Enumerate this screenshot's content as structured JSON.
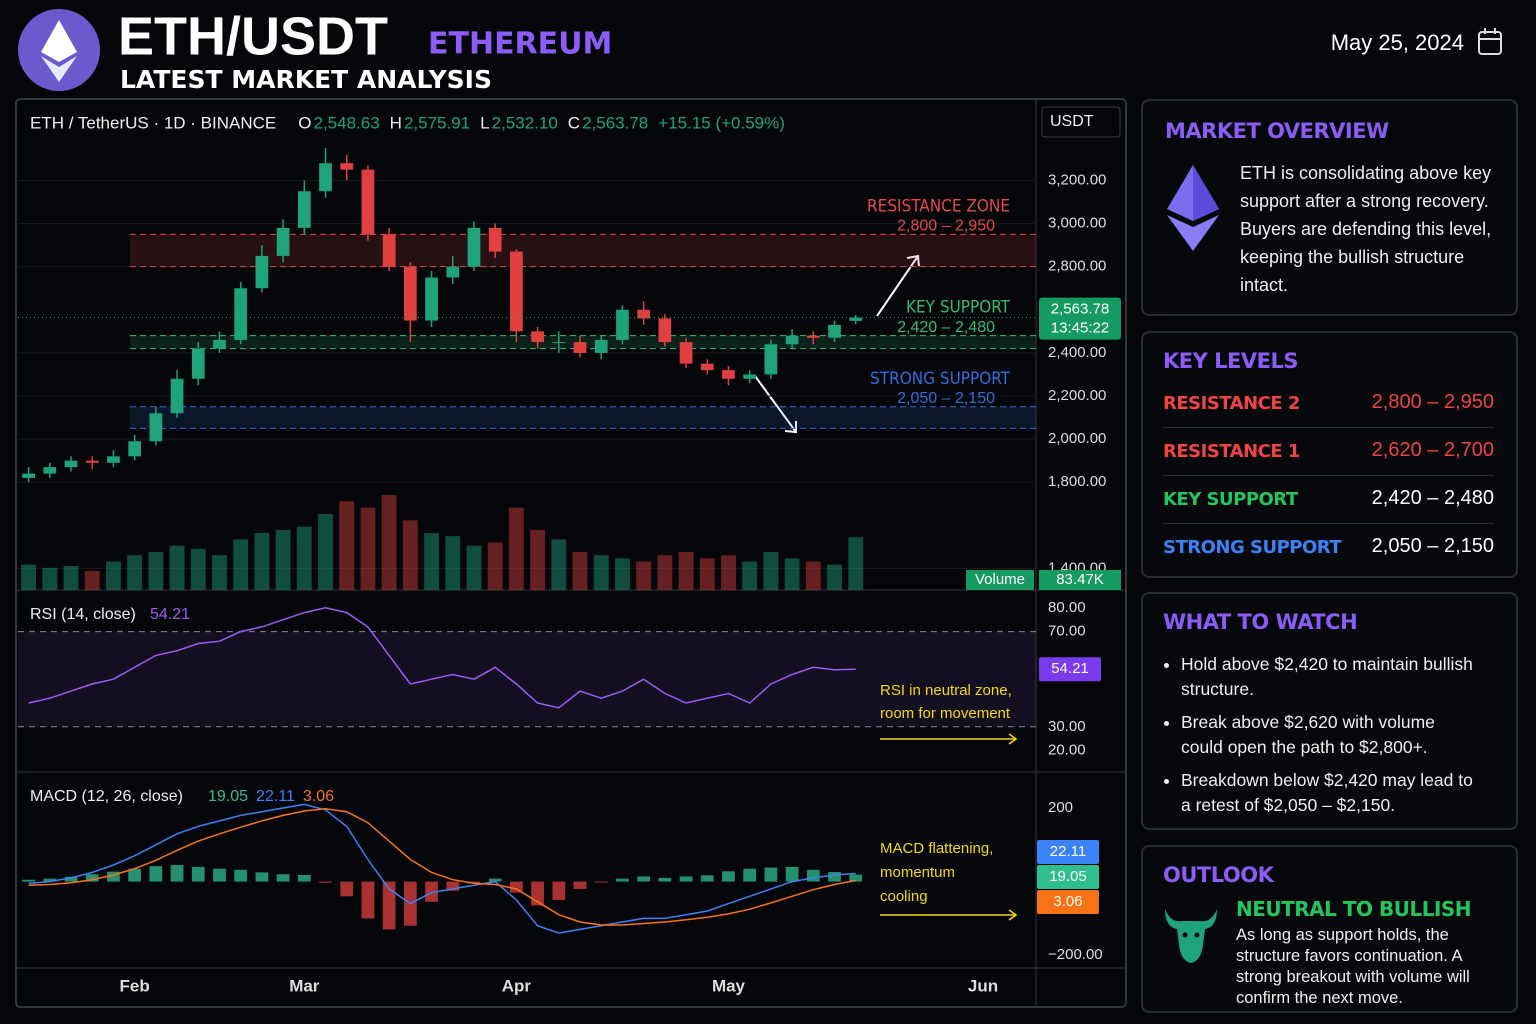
{
  "header": {
    "symbol": "ETH/USDT",
    "name": "ETHEREUM",
    "subtitle": "LATEST MARKET ANALYSIS",
    "date": "May 25, 2024"
  },
  "chart_data": {
    "type": "candlestick",
    "title": "ETH / TetherUS · 1D · BINANCE",
    "ohlc_header": [
      {
        "key": "O",
        "label": "2,548.63"
      },
      {
        "key": "H",
        "label": "2,575.91"
      },
      {
        "key": "L",
        "label": "2,532.10"
      },
      {
        "key": "C",
        "label": "2,563.78"
      }
    ],
    "change": "+15.15 (+0.59%)",
    "currency": "USDT",
    "categories": [
      null,
      null,
      null,
      null,
      null,
      "Feb",
      null,
      null,
      null,
      null,
      null,
      null,
      null,
      "Mar",
      null,
      null,
      null,
      null,
      null,
      null,
      null,
      null,
      null,
      "Apr",
      null,
      null,
      null,
      null,
      null,
      null,
      null,
      null,
      null,
      "May",
      null,
      null,
      null,
      null,
      null,
      null,
      null,
      null,
      null,
      null,
      null,
      "Jun",
      null,
      null
    ],
    "open": [
      1820,
      1840,
      1870,
      1900,
      1890,
      1920,
      1990,
      2120,
      2280,
      2420,
      2460,
      2700,
      2850,
      2980,
      3150,
      3280,
      3250,
      2950,
      2800,
      2550,
      2750,
      2800,
      2980,
      2870,
      2500,
      2450,
      2450,
      2400,
      2460,
      2600,
      2560,
      2450,
      2350,
      2320,
      2280,
      2300,
      2440,
      2480,
      2470,
      2548.63,
      null,
      null,
      null,
      null,
      null,
      null,
      null,
      null
    ],
    "high": [
      1870,
      1890,
      1920,
      1920,
      1950,
      2020,
      2150,
      2320,
      2450,
      2500,
      2730,
      2900,
      3020,
      3200,
      3350,
      3320,
      3270,
      2980,
      2820,
      2780,
      2850,
      3010,
      3000,
      2880,
      2520,
      2500,
      2480,
      2480,
      2620,
      2640,
      2580,
      2470,
      2370,
      2340,
      2320,
      2460,
      2510,
      2500,
      2550,
      2575.91,
      null,
      null,
      null,
      null,
      null,
      null,
      null,
      null
    ],
    "low": [
      1800,
      1820,
      1850,
      1860,
      1870,
      1900,
      1970,
      2100,
      2250,
      2400,
      2440,
      2680,
      2820,
      2950,
      3120,
      3200,
      2920,
      2780,
      2450,
      2520,
      2720,
      2780,
      2840,
      2450,
      2420,
      2400,
      2380,
      2370,
      2440,
      2530,
      2430,
      2330,
      2300,
      2250,
      2260,
      2280,
      2420,
      2440,
      2450,
      2532.1,
      null,
      null,
      null,
      null,
      null,
      null,
      null,
      null
    ],
    "close": [
      1840,
      1870,
      1900,
      1890,
      1920,
      1990,
      2120,
      2280,
      2420,
      2460,
      2700,
      2850,
      2980,
      3150,
      3280,
      3250,
      2950,
      2800,
      2550,
      2750,
      2800,
      2980,
      2870,
      2500,
      2450,
      2450,
      2400,
      2460,
      2600,
      2560,
      2450,
      2350,
      2320,
      2280,
      2300,
      2440,
      2480,
      2470,
      2530,
      2563.78,
      null,
      null,
      null,
      null,
      null,
      null,
      null,
      null
    ],
    "volume": [
      40,
      35,
      38,
      30,
      45,
      55,
      60,
      70,
      65,
      55,
      80,
      90,
      95,
      100,
      120,
      140,
      130,
      150,
      110,
      90,
      85,
      70,
      75,
      130,
      95,
      80,
      60,
      55,
      50,
      45,
      55,
      60,
      50,
      55,
      45,
      60,
      50,
      45,
      40,
      83.47,
      null,
      null,
      null,
      null,
      null,
      null,
      null,
      null
    ],
    "volume_title": "Volume",
    "volume_last_label": "83.47K",
    "up_color": "#1fa37a",
    "down_color": "#e0403f",
    "ylim": [
      1300,
      3550
    ],
    "yticks": [
      {
        "value": 1400,
        "label": "1,400.00"
      },
      {
        "value": 1800,
        "label": "1,800.00"
      },
      {
        "value": 2000,
        "label": "2,000.00"
      },
      {
        "value": 2200,
        "label": "2,200.00"
      },
      {
        "value": 2400,
        "label": "2,400.00"
      },
      {
        "value": 2800,
        "label": "2,800.00"
      },
      {
        "value": 3000,
        "label": "3,000.00"
      },
      {
        "value": 3200,
        "label": "3,200.00"
      }
    ],
    "grid": true,
    "last_price": {
      "value": 2563.78,
      "label": "2,563.78",
      "timer": "13:45:22"
    },
    "zones": [
      {
        "name": "RESISTANCE ZONE",
        "label": "2,800 – 2,950",
        "low": 2800,
        "high": 2950,
        "color": "#e5484d"
      },
      {
        "name": "KEY SUPPORT",
        "label": "2,420 – 2,480",
        "low": 2420,
        "high": 2480,
        "color": "#2fbf71"
      },
      {
        "name": "STRONG SUPPORT",
        "label": "2,050 – 2,150",
        "low": 2050,
        "high": 2150,
        "color": "#2f6fe0"
      }
    ],
    "rsi": {
      "title": "RSI (14, close)",
      "color": "#9b5cf6",
      "values": [
        40,
        42,
        45,
        48,
        50,
        55,
        60,
        62,
        65,
        66,
        70,
        72,
        75,
        78,
        80,
        78,
        72,
        60,
        48,
        50,
        52,
        50,
        55,
        48,
        40,
        38,
        45,
        42,
        45,
        50,
        44,
        40,
        42,
        44,
        40,
        48,
        52,
        55,
        54,
        54.21,
        null,
        null,
        null,
        null,
        null,
        null,
        null,
        null
      ],
      "ylim": [
        11,
        87.5
      ],
      "yticks": [
        {
          "value": 20,
          "label": "20.00"
        },
        {
          "value": 30,
          "label": "30.00"
        },
        {
          "value": 70,
          "label": "70.00"
        },
        {
          "value": 80,
          "label": "80.00"
        }
      ],
      "bands": [
        30,
        70
      ],
      "annotation": [
        "RSI in neutral zone,",
        "room for movement"
      ]
    },
    "macd": {
      "title": "MACD (12, 26, close)",
      "histogram": {
        "color": "#2fbf8f",
        "up_color": "#2fbf8f",
        "down_color": "#e0403f",
        "values": [
          5,
          8,
          13,
          20,
          27,
          35,
          42,
          45,
          40,
          35,
          32,
          25,
          20,
          18,
          -3,
          -40,
          -100,
          -130,
          -120,
          -55,
          -25,
          -5,
          8,
          -30,
          -65,
          -50,
          -20,
          -2,
          8,
          14,
          10,
          14,
          17,
          28,
          35,
          38,
          40,
          32,
          26,
          19.05,
          null,
          null,
          null,
          null,
          null,
          null,
          null,
          null
        ]
      },
      "series": [
        {
          "color": "#3b82f6",
          "values": [
            -5,
            0,
            10,
            25,
            45,
            70,
            100,
            130,
            150,
            165,
            180,
            190,
            200,
            210,
            195,
            150,
            60,
            -20,
            -60,
            -30,
            -20,
            -10,
            0,
            -50,
            -120,
            -140,
            -130,
            -120,
            -110,
            -100,
            -100,
            -90,
            -80,
            -60,
            -40,
            -20,
            0,
            10,
            18,
            22.11,
            null,
            null,
            null,
            null,
            null,
            null,
            null,
            null
          ]
        },
        {
          "color": "#f97316",
          "values": [
            -10,
            -8,
            -3,
            5,
            18,
            35,
            58,
            85,
            110,
            130,
            148,
            165,
            180,
            192,
            198,
            190,
            160,
            110,
            60,
            25,
            5,
            -5,
            -8,
            -20,
            -55,
            -90,
            -110,
            -118,
            -118,
            -114,
            -110,
            -104,
            -97,
            -88,
            -75,
            -58,
            -40,
            -22,
            -8,
            3.06,
            null,
            null,
            null,
            null,
            null,
            null,
            null,
            null
          ]
        }
      ],
      "ylim": [
        -235,
        298
      ],
      "yticks": [
        {
          "value": -200,
          "label": "−200.00"
        },
        200
      ],
      "annotation": [
        "MACD flattening,",
        "momentum",
        "cooling"
      ]
    }
  },
  "market_overview": {
    "title": "MARKET OVERVIEW",
    "text": "ETH is consolidating above key support after a strong recovery. Buyers are defending this level, keeping the bullish structure intact."
  },
  "key_levels": {
    "title": "KEY LEVELS",
    "rows": [
      {
        "name": "RESISTANCE 2",
        "range": "2,800 – 2,950",
        "name_color": "#ef4444",
        "range_color": "#ef4444"
      },
      {
        "name": "RESISTANCE 1",
        "range": "2,620 – 2,700",
        "name_color": "#ef4444",
        "range_color": "#ef4444"
      },
      {
        "name": "KEY SUPPORT",
        "range": "2,420 – 2,480",
        "name_color": "#22c55e",
        "range_color": "#ffffff"
      },
      {
        "name": "STRONG SUPPORT",
        "range": "2,050 – 2,150",
        "name_color": "#3b82f6",
        "range_color": "#ffffff"
      }
    ]
  },
  "what_to_watch": {
    "title": "WHAT TO WATCH",
    "items": [
      "Hold above $2,420 to maintain bullish structure.",
      "Break above $2,620 with volume could open the path to $2,800+.",
      "Breakdown below $2,420 may lead to a retest of $2,050 – $2,150."
    ]
  },
  "outlook": {
    "title": "OUTLOOK",
    "verdict": "NEUTRAL TO BULLISH",
    "text": "As long as support holds, the structure favors continuation. A strong breakout with volume will confirm the next move."
  }
}
